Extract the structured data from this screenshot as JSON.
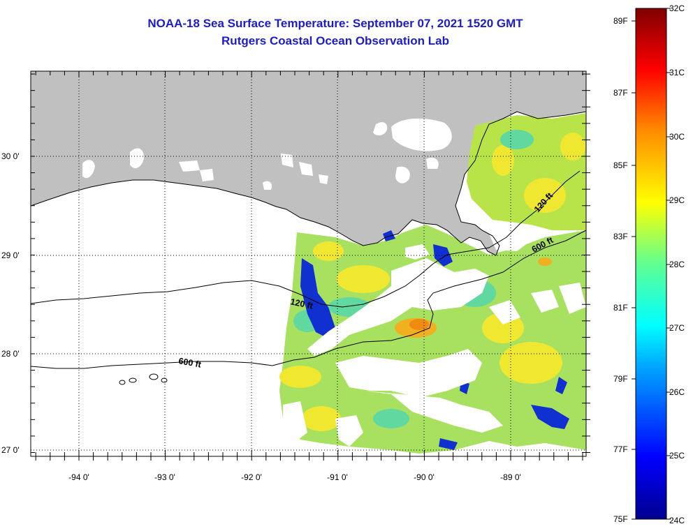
{
  "title": "NOAA-18 Sea Surface Temperature:  September 07, 2021 1520 GMT",
  "subtitle": "Rutgers Coastal Ocean Observation Lab",
  "lat_labels": [
    "30 0'",
    "29 0'",
    "28 0'",
    "27 0'"
  ],
  "lon_labels": [
    "-94 0'",
    "-93 0'",
    "-92 0'",
    "-91 0'",
    "-90 0'",
    "-89 0'"
  ],
  "contour_labels": [
    "120 ft",
    "600 ft",
    "120 ft",
    "600 ft"
  ],
  "colorbar": {
    "fahrenheit": [
      "89F",
      "87F",
      "85F",
      "83F",
      "81F",
      "79F",
      "77F",
      "75F"
    ],
    "celsius": [
      "32C",
      "31C",
      "30C",
      "29C",
      "28C",
      "27C",
      "26C",
      "25C",
      "24C"
    ]
  },
  "colors": {
    "land": "#c0c0c0",
    "title": "#1c1cc8"
  }
}
